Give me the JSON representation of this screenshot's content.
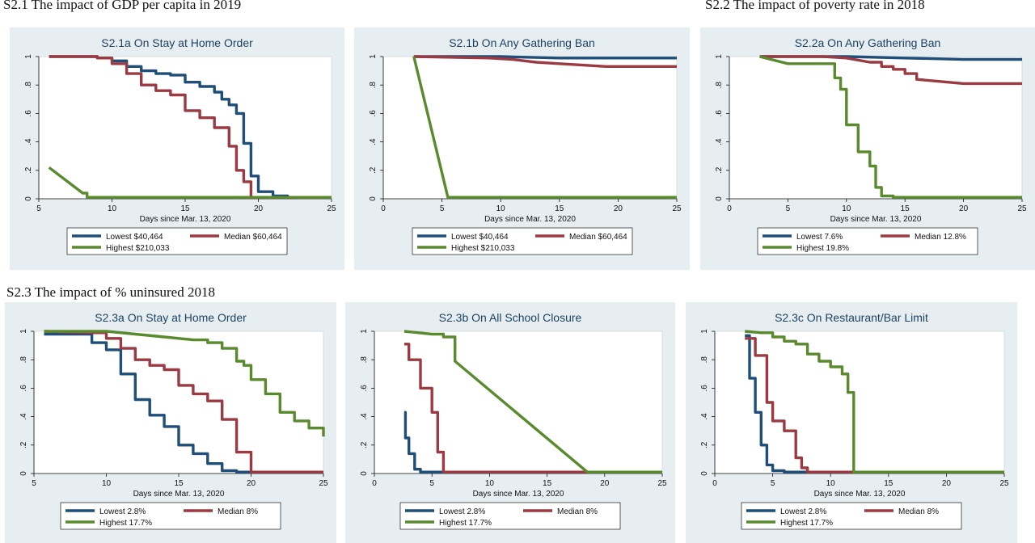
{
  "sections": [
    {
      "label": "S2.1 The impact of GDP per capita in 2019"
    },
    {
      "label": "S2.2 The impact of poverty rate in 2018"
    },
    {
      "label": "S2.3 The impact of % uninsured 2018"
    }
  ],
  "colors": {
    "lowest": "#1f4e79",
    "median": "#9b3a42",
    "highest": "#5a8a2e"
  },
  "chart_data": [
    {
      "type": "line",
      "step": true,
      "title": "S2.1a On Stay at Home Order",
      "xlabel": "Days since Mar. 13, 2020",
      "ylabel": "",
      "xlim": [
        5,
        25
      ],
      "ylim": [
        0,
        1
      ],
      "xticks": [
        "5",
        "10",
        "15",
        "20",
        "25"
      ],
      "yticks": [
        "0",
        ".2",
        ".4",
        ".6",
        ".8",
        "1"
      ],
      "legend": "bottom",
      "series": [
        {
          "name": "Lowest $40,464",
          "color": "#1f4e79",
          "x": [
            5.7,
            8,
            9,
            10,
            11,
            12,
            13,
            14,
            15,
            16,
            17,
            17.5,
            18,
            18.5,
            19,
            19.5,
            20,
            21,
            22,
            25
          ],
          "y": [
            1,
            1,
            0.99,
            0.97,
            0.93,
            0.9,
            0.88,
            0.87,
            0.82,
            0.79,
            0.75,
            0.7,
            0.66,
            0.6,
            0.39,
            0.16,
            0.05,
            0.02,
            0.01,
            0.01
          ]
        },
        {
          "name": "Median $60,464",
          "color": "#9b3a42",
          "x": [
            5.7,
            8,
            9,
            10,
            11,
            12,
            13,
            14,
            15,
            16,
            17,
            18,
            18.5,
            19,
            19.5,
            20,
            25
          ],
          "y": [
            1,
            1,
            0.99,
            0.95,
            0.88,
            0.8,
            0.76,
            0.73,
            0.62,
            0.57,
            0.5,
            0.37,
            0.2,
            0.12,
            0.01,
            0.01,
            0.01
          ]
        },
        {
          "name": "Highest $210,033",
          "color": "#5a8a2e",
          "x": [
            5.7,
            8,
            8.3,
            25
          ],
          "y": [
            0.22,
            0.04,
            0.01,
            0.01
          ]
        }
      ]
    },
    {
      "type": "line",
      "step": true,
      "title": "S2.1b On Any Gathering Ban",
      "xlabel": "Days since Mar. 13, 2020",
      "ylabel": "",
      "xlim": [
        0,
        25
      ],
      "ylim": [
        0,
        1
      ],
      "xticks": [
        "0",
        "5",
        "10",
        "15",
        "20",
        "25"
      ],
      "yticks": [
        "0",
        ".2",
        ".4",
        ".6",
        ".8",
        "1"
      ],
      "legend": "bottom",
      "series": [
        {
          "name": "Lowest $40,464",
          "color": "#1f4e79",
          "x": [
            2.6,
            10,
            15,
            25
          ],
          "y": [
            1,
            1,
            0.99,
            0.99
          ]
        },
        {
          "name": "Median $60,464",
          "color": "#9b3a42",
          "x": [
            2.6,
            9,
            11,
            13,
            15,
            17,
            19,
            25
          ],
          "y": [
            1,
            0.99,
            0.98,
            0.96,
            0.95,
            0.94,
            0.93,
            0.93
          ]
        },
        {
          "name": "Highest $210,033",
          "color": "#5a8a2e",
          "x": [
            2.6,
            5.5,
            25
          ],
          "y": [
            1,
            0.01,
            0.01
          ]
        }
      ]
    },
    {
      "type": "line",
      "step": true,
      "title": "S2.2a On Any Gathering Ban",
      "xlabel": "Days since Mar. 13, 2020",
      "ylabel": "",
      "xlim": [
        0,
        25
      ],
      "ylim": [
        0,
        1
      ],
      "xticks": [
        "0",
        "5",
        "10",
        "15",
        "20",
        "25"
      ],
      "yticks": [
        "0",
        ".2",
        ".4",
        ".6",
        ".8",
        "1"
      ],
      "legend": "bottom",
      "series": [
        {
          "name": "Lowest 7.6%",
          "color": "#1f4e79",
          "x": [
            2.6,
            10,
            15,
            20,
            25
          ],
          "y": [
            1,
            1,
            0.99,
            0.98,
            0.98
          ]
        },
        {
          "name": "Median 12.8%",
          "color": "#9b3a42",
          "x": [
            2.6,
            8,
            10,
            12,
            13,
            14,
            15,
            16,
            20,
            25
          ],
          "y": [
            1,
            1,
            0.99,
            0.96,
            0.93,
            0.91,
            0.88,
            0.84,
            0.81,
            0.81
          ]
        },
        {
          "name": "Highest 19.8%",
          "color": "#5a8a2e",
          "x": [
            2.6,
            5,
            8,
            9,
            9.5,
            10,
            11,
            12,
            12.5,
            13,
            14,
            25
          ],
          "y": [
            1,
            0.95,
            0.95,
            0.85,
            0.77,
            0.52,
            0.33,
            0.23,
            0.08,
            0.02,
            0.01,
            0.01
          ]
        }
      ]
    },
    {
      "type": "line",
      "step": true,
      "title": "S2.3a On Stay at Home Order",
      "xlabel": "Days since Mar. 13, 2020",
      "ylabel": "",
      "xlim": [
        5,
        25
      ],
      "ylim": [
        0,
        1
      ],
      "xticks": [
        "5",
        "10",
        "15",
        "20",
        "25"
      ],
      "yticks": [
        "0",
        ".2",
        ".4",
        ".6",
        ".8",
        "1"
      ],
      "legend": "bottom",
      "series": [
        {
          "name": "Lowest 2.8%",
          "color": "#1f4e79",
          "x": [
            5.7,
            8,
            9,
            10,
            11,
            12,
            13,
            14,
            15,
            16,
            17,
            18,
            19,
            25
          ],
          "y": [
            0.98,
            0.98,
            0.92,
            0.87,
            0.7,
            0.52,
            0.41,
            0.33,
            0.2,
            0.14,
            0.07,
            0.02,
            0.01,
            0.01
          ]
        },
        {
          "name": "Median 8%",
          "color": "#9b3a42",
          "x": [
            5.7,
            9,
            10,
            11,
            12,
            13,
            14,
            15,
            16,
            17,
            18,
            19,
            20,
            25
          ],
          "y": [
            1,
            0.99,
            0.95,
            0.88,
            0.8,
            0.76,
            0.73,
            0.62,
            0.56,
            0.51,
            0.38,
            0.15,
            0.01,
            0.01
          ]
        },
        {
          "name": "Highest 17.7%",
          "color": "#5a8a2e",
          "x": [
            5.7,
            10,
            12,
            14,
            16,
            17,
            18,
            19,
            19.5,
            20,
            21,
            22,
            23,
            24,
            25
          ],
          "y": [
            1,
            1,
            0.98,
            0.96,
            0.94,
            0.92,
            0.88,
            0.79,
            0.76,
            0.66,
            0.56,
            0.43,
            0.37,
            0.32,
            0.26
          ]
        }
      ]
    },
    {
      "type": "line",
      "step": true,
      "title": "S2.3b On All School Closure",
      "xlabel": "Days since Mar. 13, 2020",
      "ylabel": "",
      "xlim": [
        0,
        25
      ],
      "ylim": [
        0,
        1
      ],
      "xticks": [
        "0",
        "5",
        "10",
        "15",
        "20",
        "25"
      ],
      "yticks": [
        "0",
        ".2",
        ".4",
        ".6",
        ".8",
        "1"
      ],
      "legend": "bottom",
      "series": [
        {
          "name": "Lowest 2.8%",
          "color": "#1f4e79",
          "x": [
            2.6,
            2.7,
            3,
            3.5,
            4,
            5,
            25
          ],
          "y": [
            0.43,
            0.25,
            0.14,
            0.03,
            0.01,
            0.01,
            0.01
          ]
        },
        {
          "name": "Median 8%",
          "color": "#9b3a42",
          "x": [
            2.6,
            3,
            4,
            5,
            5.5,
            6,
            25
          ],
          "y": [
            0.91,
            0.8,
            0.6,
            0.43,
            0.15,
            0.01,
            0.01
          ]
        },
        {
          "name": "Highest 17.7%",
          "color": "#5a8a2e",
          "x": [
            2.6,
            5,
            6,
            7,
            18.5,
            25
          ],
          "y": [
            1,
            0.98,
            0.96,
            0.79,
            0.01,
            0.01
          ]
        }
      ]
    },
    {
      "type": "line",
      "step": true,
      "title": "S2.3c On Restaurant/Bar Limit",
      "xlabel": "Days since Mar. 13, 2020",
      "ylabel": "",
      "xlim": [
        0,
        25
      ],
      "ylim": [
        0,
        1
      ],
      "xticks": [
        "0",
        "5",
        "10",
        "15",
        "20",
        "25"
      ],
      "yticks": [
        "0",
        ".2",
        ".4",
        ".6",
        ".8",
        "1"
      ],
      "legend": "bottom",
      "series": [
        {
          "name": "Lowest 2.8%",
          "color": "#1f4e79",
          "x": [
            2.6,
            3,
            3.5,
            4,
            4.5,
            5,
            6,
            25
          ],
          "y": [
            0.97,
            0.67,
            0.43,
            0.2,
            0.06,
            0.02,
            0.01,
            0.01
          ]
        },
        {
          "name": "Median 8%",
          "color": "#9b3a42",
          "x": [
            2.6,
            3.5,
            4.5,
            5,
            6,
            7,
            7.5,
            8,
            25
          ],
          "y": [
            0.95,
            0.83,
            0.5,
            0.37,
            0.3,
            0.11,
            0.04,
            0.01,
            0.01
          ]
        },
        {
          "name": "Highest 17.7%",
          "color": "#5a8a2e",
          "x": [
            2.6,
            4,
            5,
            6,
            7,
            8,
            9,
            10,
            11,
            11.5,
            12,
            25
          ],
          "y": [
            1,
            0.99,
            0.96,
            0.93,
            0.91,
            0.84,
            0.79,
            0.75,
            0.7,
            0.57,
            0.01,
            0.01
          ]
        }
      ]
    }
  ]
}
